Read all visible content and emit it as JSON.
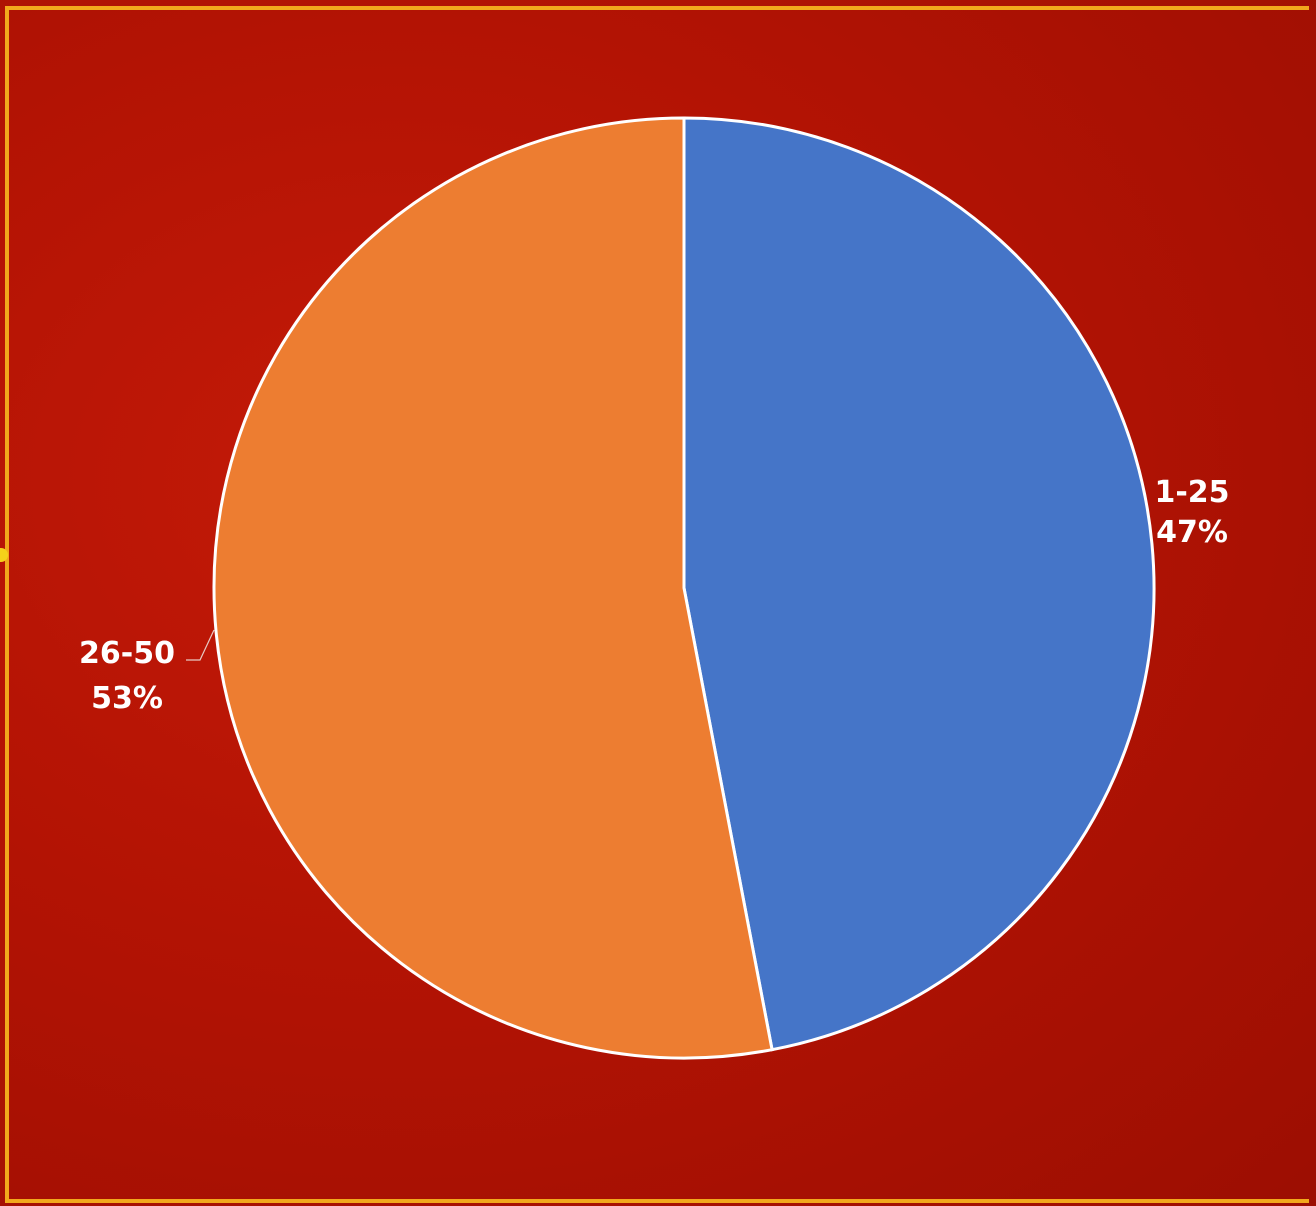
{
  "chart_data": {
    "type": "pie",
    "categories": [
      "1-25",
      "26-50"
    ],
    "values": [
      47,
      53
    ],
    "labels": [
      {
        "category": "1-25",
        "percent": "47%"
      },
      {
        "category": "26-50",
        "percent": "53%"
      }
    ],
    "colors": [
      "#4575c8",
      "#ed7d31"
    ],
    "title": "",
    "legend": "none"
  },
  "colors": {
    "background": "#b31304",
    "frame": "#f2a81c",
    "slice_border": "#ffffff"
  }
}
